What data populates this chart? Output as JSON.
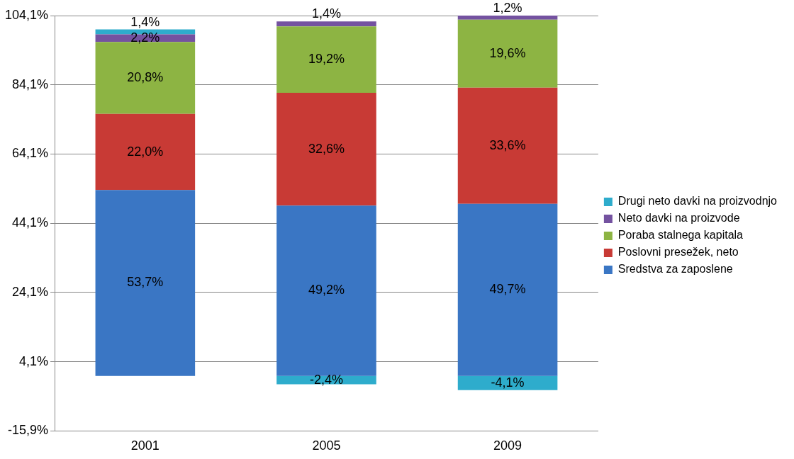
{
  "chart_data": {
    "type": "bar",
    "stacked": true,
    "categories": [
      "2001",
      "2005",
      "2009"
    ],
    "series": [
      {
        "name": "Sredstva za zaposlene",
        "color": "#3a76c4",
        "values": [
          53.7,
          49.2,
          49.7
        ],
        "value_labels": [
          "53,7%",
          "49,2%",
          "49,7%"
        ]
      },
      {
        "name": "Poslovni presežek, neto",
        "color": "#c83a35",
        "values": [
          22.0,
          32.6,
          33.6
        ],
        "value_labels": [
          "22,0%",
          "32,6%",
          "33,6%"
        ]
      },
      {
        "name": "Poraba stalnega kapitala",
        "color": "#8db443",
        "values": [
          20.8,
          19.2,
          19.6
        ],
        "value_labels": [
          "20,8%",
          "19,2%",
          "19,6%"
        ]
      },
      {
        "name": "Neto davki na proizvode",
        "color": "#7452a0",
        "values": [
          2.2,
          1.4,
          1.2
        ],
        "value_labels": [
          "2,2%",
          "1,4%",
          "1,2%"
        ]
      },
      {
        "name": "Drugi neto davki na proizvodnjo",
        "color": "#2eaccc",
        "values": [
          1.4,
          -2.4,
          -4.1
        ],
        "value_labels": [
          "1,4%",
          "-2,4%",
          "-4,1%"
        ]
      }
    ],
    "ylim": [
      -15.9,
      104.1
    ],
    "yticks": [
      {
        "value": -15.9,
        "label": "-15,9%"
      },
      {
        "value": 4.1,
        "label": "4,1%"
      },
      {
        "value": 24.1,
        "label": "24,1%"
      },
      {
        "value": 44.1,
        "label": "44,1%"
      },
      {
        "value": 64.1,
        "label": "64,1%"
      },
      {
        "value": 84.1,
        "label": "84,1%"
      },
      {
        "value": 104.1,
        "label": "104,1%"
      }
    ],
    "grid": "y",
    "legend": "right"
  }
}
